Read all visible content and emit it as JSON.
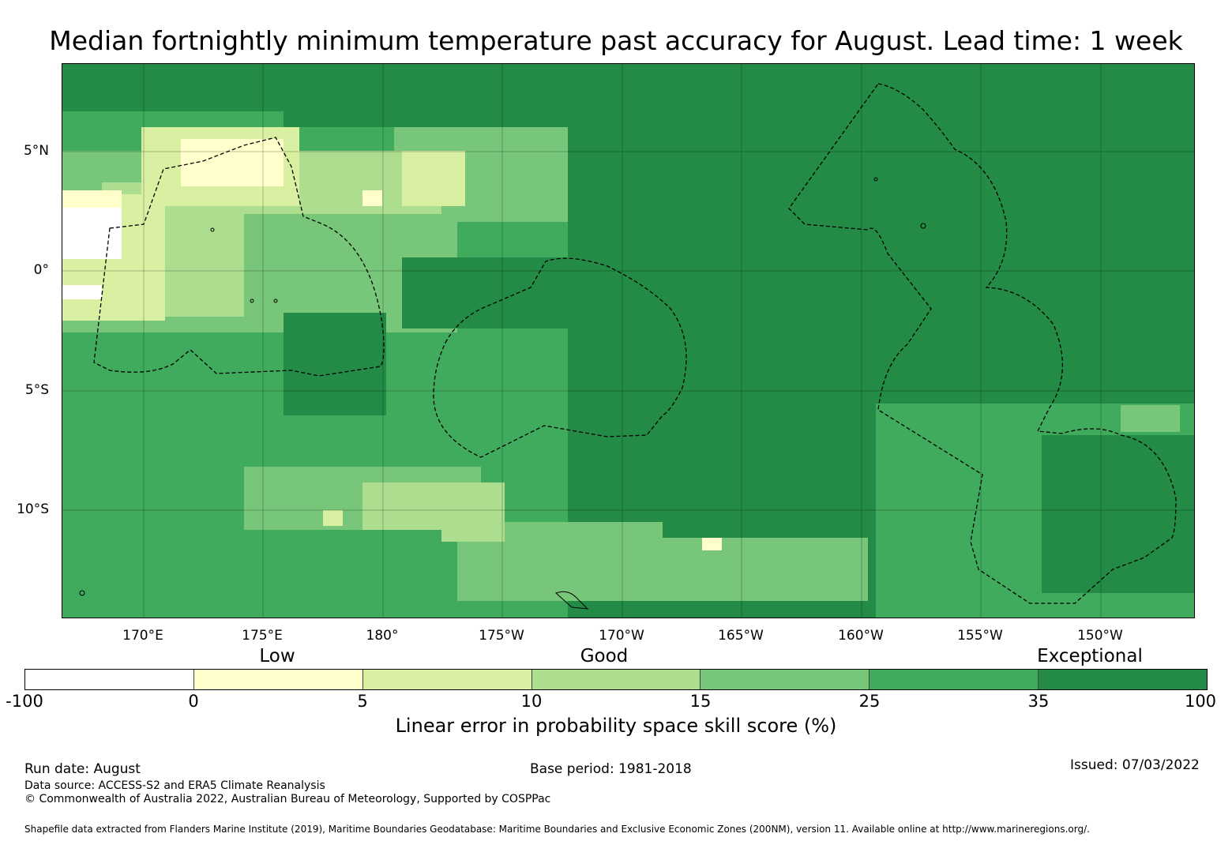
{
  "title": "Median fortnightly minimum temperature past accuracy for August. Lead time: 1 week",
  "map": {
    "lat_labels": [
      "5°N",
      "0°",
      "5°S",
      "10°S"
    ],
    "lon_labels": [
      "170°E",
      "175°E",
      "180°",
      "175°W",
      "170°W",
      "165°W",
      "160°W",
      "155°W",
      "150°W"
    ],
    "base_color": "#238b45"
  },
  "legend": {
    "categories": [
      "Low",
      "Good",
      "Exceptional"
    ],
    "colors": [
      "#ffffff",
      "#ffffcc",
      "#d9f0a3",
      "#addd8e",
      "#78c679",
      "#41ab5d",
      "#238b45"
    ],
    "ticks": [
      "-100",
      "0",
      "5",
      "10",
      "15",
      "25",
      "35",
      "100"
    ],
    "label": "Linear error in probability space skill score (%)"
  },
  "footer": {
    "run_date": "Run date: August",
    "base_period": "Base period: 1981-2018",
    "issued": "Issued: 07/03/2022",
    "data_source": "Data source: ACCESS-S2 and ERA5 Climate Reanalysis",
    "copyright": "© Commonwealth of Australia 2022, Australian Bureau of Meteorology, Supported by COSPPac",
    "shapefile": "Shapefile data extracted from Flanders Marine Institute (2019), Maritime Boundaries Geodatabase: Maritime Boundaries and Exclusive Economic Zones (200NM), version 11. Available online at http://www.marineregions.org/."
  }
}
